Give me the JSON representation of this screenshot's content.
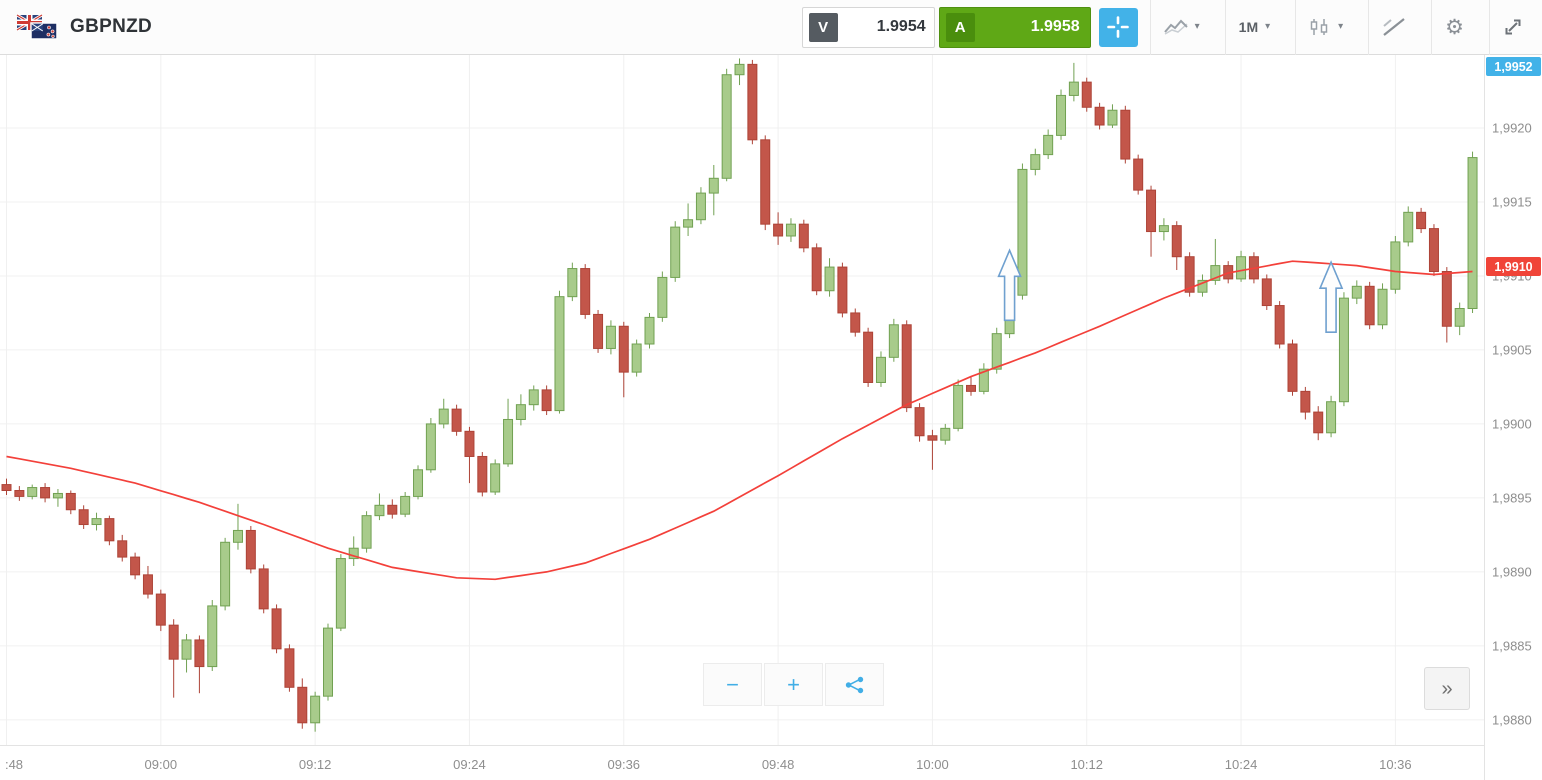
{
  "header": {
    "symbol": "GBPNZD",
    "flag_icon": "gbp-nzd-flags",
    "sell_button": {
      "badge": "V",
      "price": "1.9954"
    },
    "buy_button": {
      "badge": "A",
      "price": "1.9958"
    },
    "timeframe": "1M",
    "icons": {
      "caret": "▾",
      "gear": "⚙",
      "crosshair": "crosshair",
      "chart_type": "line-chart",
      "candle_style": "candlesticks",
      "drawing": "trend-line",
      "fullscreen": "expand"
    }
  },
  "footer_controls": {
    "zoom_out": "−",
    "zoom_in": "+",
    "share_icon": "share",
    "collapse_button": "»"
  },
  "colors": {
    "buy_green": "#5fa816",
    "sell_badge_grey": "#555b61",
    "accent_blue": "#42b2e8",
    "ma_red": "#f3403a",
    "price_badge_red": "#f04438",
    "candle_up": "#a8cb8b",
    "candle_down": "#c3564a"
  },
  "chart_data": {
    "type": "candlestick",
    "symbol": "GBPNZD",
    "timeframe": "1M",
    "price_base": 1.98,
    "pip_unit": 0.0001,
    "up_color": "#a8cb8b",
    "up_border": "#71a152",
    "down_color": "#c3564a",
    "down_border": "#ad4337",
    "grid": true,
    "y_axis": {
      "price_top": 1.9925,
      "price_bottom": 1.98783,
      "ticks": [
        "1,9920",
        "1,9915",
        "1,9910",
        "1,9905",
        "1,9900",
        "1,9895",
        "1,9890",
        "1,9885",
        "1,9880"
      ],
      "tick_values": [
        1.992,
        1.9915,
        1.991,
        1.9905,
        1.99,
        1.9895,
        1.989,
        1.9885,
        1.988
      ]
    },
    "x_axis": {
      "labels": [
        ":48",
        "09:00",
        "09:12",
        "09:24",
        "09:36",
        "09:48",
        "10:00",
        "10:12",
        "10:24",
        "10:36"
      ],
      "label_candle_indices": [
        0,
        12,
        24,
        36,
        48,
        60,
        72,
        84,
        96,
        108
      ]
    },
    "top_badge": {
      "text": "1,9952",
      "color": "#42b2e8"
    },
    "price_badge": {
      "text": "1,9910",
      "color": "#f04438",
      "price_pips": 110.4
    },
    "ma_line": {
      "color": "#f3403a",
      "points_pips": [
        [
          0,
          97.8
        ],
        [
          5,
          97.0
        ],
        [
          10,
          96.0
        ],
        [
          15,
          94.7
        ],
        [
          20,
          93.2
        ],
        [
          25,
          91.6
        ],
        [
          30,
          90.3
        ],
        [
          35,
          89.6
        ],
        [
          38,
          89.5
        ],
        [
          42,
          90.0
        ],
        [
          45,
          90.6
        ],
        [
          50,
          92.2
        ],
        [
          55,
          94.1
        ],
        [
          60,
          96.5
        ],
        [
          65,
          99.0
        ],
        [
          70,
          101.3
        ],
        [
          75,
          103.2
        ],
        [
          80,
          104.8
        ],
        [
          85,
          106.6
        ],
        [
          90,
          108.5
        ],
        [
          95,
          110.2
        ],
        [
          100,
          111.0
        ],
        [
          105,
          110.7
        ],
        [
          108,
          110.3
        ],
        [
          111,
          110.1
        ],
        [
          114,
          110.3
        ]
      ]
    },
    "buy_arrows": [
      {
        "candle_index": 78,
        "price_pips": 107.0
      },
      {
        "candle_index": 103,
        "price_pips": 106.2
      }
    ],
    "candles_ohlc_pips": [
      [
        95.9,
        96.3,
        95.2,
        95.5
      ],
      [
        95.5,
        95.8,
        94.8,
        95.1
      ],
      [
        95.1,
        95.9,
        94.9,
        95.7
      ],
      [
        95.7,
        96.0,
        94.7,
        95.0
      ],
      [
        95.0,
        95.6,
        94.4,
        95.3
      ],
      [
        95.3,
        95.5,
        93.9,
        94.2
      ],
      [
        94.2,
        94.5,
        92.9,
        93.2
      ],
      [
        93.2,
        94.0,
        92.8,
        93.6
      ],
      [
        93.6,
        93.8,
        91.8,
        92.1
      ],
      [
        92.1,
        92.5,
        90.7,
        91.0
      ],
      [
        91.0,
        91.3,
        89.5,
        89.8
      ],
      [
        89.8,
        90.4,
        88.2,
        88.5
      ],
      [
        88.5,
        88.8,
        86.0,
        86.4
      ],
      [
        86.4,
        86.8,
        81.5,
        84.1
      ],
      [
        84.1,
        85.8,
        83.2,
        85.4
      ],
      [
        85.4,
        85.7,
        81.8,
        83.6
      ],
      [
        83.6,
        88.1,
        83.3,
        87.7
      ],
      [
        87.7,
        92.3,
        87.4,
        92.0
      ],
      [
        92.0,
        94.6,
        91.5,
        92.8
      ],
      [
        92.8,
        93.1,
        89.9,
        90.2
      ],
      [
        90.2,
        90.5,
        87.2,
        87.5
      ],
      [
        87.5,
        87.8,
        84.5,
        84.8
      ],
      [
        84.8,
        85.1,
        81.9,
        82.2
      ],
      [
        82.2,
        82.8,
        79.4,
        79.8
      ],
      [
        79.8,
        81.9,
        79.2,
        81.6
      ],
      [
        81.6,
        86.5,
        81.3,
        86.2
      ],
      [
        86.2,
        91.2,
        86.0,
        90.9
      ],
      [
        90.9,
        92.4,
        90.4,
        91.6
      ],
      [
        91.6,
        94.1,
        91.3,
        93.8
      ],
      [
        93.8,
        95.3,
        93.5,
        94.5
      ],
      [
        94.5,
        94.9,
        93.6,
        93.9
      ],
      [
        93.9,
        95.4,
        93.7,
        95.1
      ],
      [
        95.1,
        97.2,
        94.9,
        96.9
      ],
      [
        96.9,
        100.4,
        96.7,
        100.0
      ],
      [
        100.0,
        101.7,
        99.7,
        101.0
      ],
      [
        101.0,
        101.3,
        99.2,
        99.5
      ],
      [
        99.5,
        99.8,
        96.0,
        97.8
      ],
      [
        97.8,
        98.1,
        95.1,
        95.4
      ],
      [
        95.4,
        97.6,
        95.2,
        97.3
      ],
      [
        97.3,
        101.7,
        97.1,
        100.3
      ],
      [
        100.3,
        102.0,
        99.9,
        101.3
      ],
      [
        101.3,
        102.6,
        100.9,
        102.3
      ],
      [
        102.3,
        102.6,
        100.6,
        100.9
      ],
      [
        100.9,
        109.0,
        100.7,
        108.6
      ],
      [
        108.6,
        110.9,
        108.3,
        110.5
      ],
      [
        110.5,
        110.8,
        107.1,
        107.4
      ],
      [
        107.4,
        107.7,
        104.8,
        105.1
      ],
      [
        105.1,
        107.0,
        104.7,
        106.6
      ],
      [
        106.6,
        106.9,
        101.8,
        103.5
      ],
      [
        103.5,
        105.7,
        103.2,
        105.4
      ],
      [
        105.4,
        107.5,
        105.1,
        107.2
      ],
      [
        107.2,
        110.3,
        106.9,
        109.9
      ],
      [
        109.9,
        113.7,
        109.6,
        113.3
      ],
      [
        113.3,
        114.9,
        112.7,
        113.8
      ],
      [
        113.8,
        116.0,
        113.5,
        115.6
      ],
      [
        115.6,
        117.5,
        114.1,
        116.6
      ],
      [
        116.6,
        124.0,
        116.4,
        123.6
      ],
      [
        123.6,
        124.7,
        122.9,
        124.3
      ],
      [
        124.3,
        124.6,
        118.9,
        119.2
      ],
      [
        119.2,
        119.5,
        113.1,
        113.5
      ],
      [
        113.5,
        114.3,
        112.1,
        112.7
      ],
      [
        112.7,
        113.9,
        112.3,
        113.5
      ],
      [
        113.5,
        113.8,
        111.6,
        111.9
      ],
      [
        111.9,
        112.2,
        108.7,
        109.0
      ],
      [
        109.0,
        111.2,
        108.6,
        110.6
      ],
      [
        110.6,
        110.9,
        107.2,
        107.5
      ],
      [
        107.5,
        107.8,
        105.9,
        106.2
      ],
      [
        106.2,
        106.5,
        102.5,
        102.8
      ],
      [
        102.8,
        104.9,
        102.5,
        104.5
      ],
      [
        104.5,
        107.1,
        104.2,
        106.7
      ],
      [
        106.7,
        107.0,
        100.8,
        101.1
      ],
      [
        101.1,
        101.4,
        98.8,
        99.2
      ],
      [
        99.2,
        99.6,
        96.9,
        98.9
      ],
      [
        98.9,
        100.0,
        98.6,
        99.7
      ],
      [
        99.7,
        103.0,
        99.5,
        102.6
      ],
      [
        102.6,
        103.2,
        101.9,
        102.2
      ],
      [
        102.2,
        104.1,
        102.0,
        103.7
      ],
      [
        103.7,
        106.5,
        103.4,
        106.1
      ],
      [
        106.1,
        109.1,
        105.8,
        108.7
      ],
      [
        108.7,
        117.6,
        108.4,
        117.2
      ],
      [
        117.2,
        118.6,
        116.8,
        118.2
      ],
      [
        118.2,
        119.9,
        117.9,
        119.5
      ],
      [
        119.5,
        122.6,
        119.2,
        122.2
      ],
      [
        122.2,
        124.4,
        121.8,
        123.1
      ],
      [
        123.1,
        123.4,
        121.1,
        121.4
      ],
      [
        121.4,
        121.7,
        119.9,
        120.2
      ],
      [
        120.2,
        121.6,
        120.0,
        121.2
      ],
      [
        121.2,
        121.5,
        117.6,
        117.9
      ],
      [
        117.9,
        118.2,
        115.5,
        115.8
      ],
      [
        115.8,
        116.1,
        111.3,
        113.0
      ],
      [
        113.0,
        113.9,
        112.4,
        113.4
      ],
      [
        113.4,
        113.7,
        110.4,
        111.3
      ],
      [
        111.3,
        111.6,
        108.6,
        108.9
      ],
      [
        108.9,
        110.1,
        108.6,
        109.7
      ],
      [
        109.7,
        112.5,
        109.4,
        110.7
      ],
      [
        110.7,
        111.0,
        109.5,
        109.8
      ],
      [
        109.8,
        111.7,
        109.6,
        111.3
      ],
      [
        111.3,
        111.6,
        109.5,
        109.8
      ],
      [
        109.8,
        110.1,
        107.7,
        108.0
      ],
      [
        108.0,
        108.3,
        105.1,
        105.4
      ],
      [
        105.4,
        105.7,
        101.9,
        102.2
      ],
      [
        102.2,
        102.5,
        100.3,
        100.8
      ],
      [
        100.8,
        101.2,
        98.9,
        99.4
      ],
      [
        99.4,
        101.9,
        99.1,
        101.5
      ],
      [
        101.5,
        108.9,
        101.2,
        108.5
      ],
      [
        108.5,
        109.7,
        108.1,
        109.3
      ],
      [
        109.3,
        109.6,
        106.4,
        106.7
      ],
      [
        106.7,
        109.5,
        106.4,
        109.1
      ],
      [
        109.1,
        112.7,
        108.8,
        112.3
      ],
      [
        112.3,
        114.7,
        112.0,
        114.3
      ],
      [
        114.3,
        114.6,
        112.9,
        113.2
      ],
      [
        113.2,
        113.5,
        110.0,
        110.3
      ],
      [
        110.3,
        110.6,
        105.5,
        106.6
      ],
      [
        106.6,
        108.2,
        106.0,
        107.8
      ],
      [
        107.8,
        118.4,
        107.5,
        118.0
      ]
    ]
  }
}
